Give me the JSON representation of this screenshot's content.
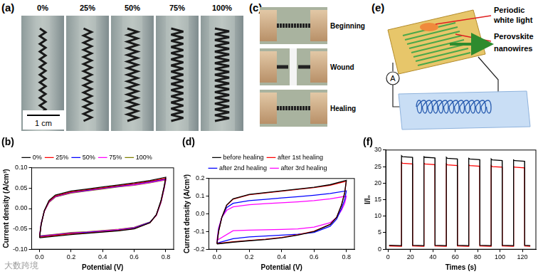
{
  "chart_data": [
    {
      "type": "line",
      "title": "(b)",
      "x_label": "Potential (V)",
      "y_label": "Current density (A/cm³)",
      "xlim": [
        -0.05,
        0.85
      ],
      "xticks": [
        {
          "value": 0,
          "label": "0.0"
        },
        {
          "value": 0.2,
          "label": "0.2"
        },
        {
          "value": 0.4,
          "label": "0.4"
        },
        {
          "value": 0.6,
          "label": "0.6"
        },
        {
          "value": 0.8,
          "label": "0.8"
        }
      ],
      "ylim": [
        -0.1,
        0.1
      ],
      "yticks": [
        {
          "value": -0.1,
          "label": "-0.10"
        },
        {
          "value": -0.05,
          "label": "-0.05"
        },
        {
          "value": 0,
          "label": "0.00"
        },
        {
          "value": 0.05,
          "label": "0.05"
        },
        {
          "value": 0.1,
          "label": "0.10"
        }
      ],
      "grid": false,
      "legend": "top",
      "marker": "none",
      "x": [
        0,
        0.01,
        0.03,
        0.06,
        0.1,
        0.2,
        0.3,
        0.4,
        0.5,
        0.6,
        0.7,
        0.8,
        0.79,
        0.77,
        0.74,
        0.7,
        0.6,
        0.5,
        0.4,
        0.3,
        0.2,
        0.1,
        0
      ],
      "series": [
        {
          "name": "0%",
          "color": "#000000",
          "values": [
            -0.072,
            -0.04,
            -0.005,
            0.02,
            0.033,
            0.043,
            0.048,
            0.053,
            0.058,
            0.063,
            0.069,
            0.077,
            0.055,
            0.02,
            -0.015,
            -0.035,
            -0.05,
            -0.055,
            -0.058,
            -0.061,
            -0.064,
            -0.068,
            -0.072
          ]
        },
        {
          "name": "25%",
          "color": "#ff0000",
          "values": [
            -0.07,
            -0.039,
            -0.006,
            0.018,
            0.031,
            0.041,
            0.046,
            0.051,
            0.056,
            0.061,
            0.067,
            0.074,
            0.053,
            0.018,
            -0.016,
            -0.035,
            -0.049,
            -0.054,
            -0.057,
            -0.06,
            -0.062,
            -0.066,
            -0.07
          ]
        },
        {
          "name": "50%",
          "color": "#0000ff",
          "values": [
            -0.069,
            -0.038,
            -0.006,
            0.017,
            0.03,
            0.04,
            0.045,
            0.05,
            0.055,
            0.06,
            0.066,
            0.073,
            0.052,
            0.017,
            -0.016,
            -0.034,
            -0.048,
            -0.053,
            -0.056,
            -0.059,
            -0.061,
            -0.065,
            -0.069
          ]
        },
        {
          "name": "75%",
          "color": "#ff00ff",
          "values": [
            -0.068,
            -0.037,
            -0.007,
            0.016,
            0.029,
            0.039,
            0.044,
            0.049,
            0.054,
            0.058,
            0.064,
            0.071,
            0.05,
            0.016,
            -0.017,
            -0.034,
            -0.047,
            -0.052,
            -0.055,
            -0.058,
            -0.06,
            -0.064,
            -0.068
          ]
        },
        {
          "name": "100%",
          "color": "#808000",
          "values": [
            -0.067,
            -0.036,
            -0.007,
            0.015,
            0.028,
            0.038,
            0.043,
            0.048,
            0.053,
            0.057,
            0.063,
            0.07,
            0.049,
            0.015,
            -0.017,
            -0.033,
            -0.046,
            -0.051,
            -0.054,
            -0.057,
            -0.059,
            -0.063,
            -0.067
          ]
        }
      ]
    },
    {
      "type": "line",
      "title": "(d)",
      "x_label": "Potential (V)",
      "y_label": "Current density (A/cm³)",
      "xlim": [
        -0.05,
        0.85
      ],
      "xticks": [
        {
          "value": 0,
          "label": "0.0"
        },
        {
          "value": 0.2,
          "label": "0.2"
        },
        {
          "value": 0.4,
          "label": "0.4"
        },
        {
          "value": 0.6,
          "label": "0.6"
        },
        {
          "value": 0.8,
          "label": "0.8"
        }
      ],
      "ylim": [
        -0.2,
        0.2
      ],
      "yticks": [
        {
          "value": -0.2,
          "label": "-0.2"
        },
        {
          "value": -0.1,
          "label": "-0.1"
        },
        {
          "value": 0,
          "label": "0.0"
        },
        {
          "value": 0.1,
          "label": "0.1"
        },
        {
          "value": 0.2,
          "label": "0.2"
        }
      ],
      "grid": false,
      "legend": "top",
      "marker": "none",
      "x": [
        0,
        0.01,
        0.03,
        0.06,
        0.1,
        0.2,
        0.3,
        0.4,
        0.5,
        0.6,
        0.7,
        0.8,
        0.79,
        0.77,
        0.74,
        0.7,
        0.6,
        0.5,
        0.4,
        0.3,
        0.2,
        0.1,
        0
      ],
      "series": [
        {
          "name": "before healing",
          "color": "#000000",
          "values": [
            -0.17,
            -0.1,
            -0.02,
            0.05,
            0.085,
            0.11,
            0.12,
            0.13,
            0.14,
            0.15,
            0.165,
            0.19,
            0.12,
            0.05,
            -0.02,
            -0.06,
            -0.1,
            -0.12,
            -0.135,
            -0.145,
            -0.152,
            -0.16,
            -0.17
          ]
        },
        {
          "name": "after 1st healing",
          "color": "#ff0000",
          "values": [
            -0.168,
            -0.1,
            -0.02,
            0.048,
            0.083,
            0.108,
            0.118,
            0.128,
            0.138,
            0.148,
            0.162,
            0.185,
            0.118,
            0.048,
            -0.02,
            -0.06,
            -0.098,
            -0.118,
            -0.133,
            -0.143,
            -0.15,
            -0.158,
            -0.168
          ]
        },
        {
          "name": "after 2nd healing",
          "color": "#0000ff",
          "values": [
            -0.165,
            -0.09,
            -0.02,
            0.035,
            0.06,
            0.075,
            0.082,
            0.09,
            0.097,
            0.105,
            0.115,
            0.13,
            0.08,
            0.03,
            -0.03,
            -0.07,
            -0.105,
            -0.115,
            -0.12,
            -0.125,
            -0.13,
            -0.14,
            -0.165
          ]
        },
        {
          "name": "after 3rd healing",
          "color": "#ff00ff",
          "values": [
            -0.15,
            -0.08,
            -0.02,
            0.02,
            0.04,
            0.052,
            0.058,
            0.063,
            0.068,
            0.075,
            0.085,
            0.1,
            0.06,
            0.02,
            -0.02,
            -0.05,
            -0.075,
            -0.085,
            -0.088,
            -0.09,
            -0.092,
            -0.095,
            -0.15
          ]
        }
      ]
    },
    {
      "type": "line",
      "title": "(f)",
      "x_label": "Times (s)",
      "y_label": "I/I₀",
      "xlim": [
        -2,
        132
      ],
      "xticks": [
        0,
        20,
        40,
        60,
        80,
        100,
        120
      ],
      "ylim": [
        0,
        30
      ],
      "yticks": [
        0,
        5,
        10,
        15,
        20,
        25,
        30
      ],
      "grid": false,
      "marker": "none",
      "x": [
        1,
        12,
        12.1,
        13,
        21.9,
        22,
        32,
        32.1,
        33,
        41.9,
        42,
        52,
        52.1,
        53,
        61.9,
        62,
        72,
        72.1,
        73,
        81.9,
        82,
        92,
        92.1,
        93,
        101.9,
        102,
        112,
        112.1,
        113,
        121.9,
        122,
        127
      ],
      "series": [
        {
          "color": "#000000",
          "values": [
            1.2,
            1.1,
            28.3,
            28.0,
            27.8,
            1.2,
            1.1,
            28.0,
            27.8,
            27.6,
            1.2,
            1.1,
            27.8,
            27.5,
            27.3,
            1.2,
            1.1,
            27.5,
            27.3,
            27.1,
            1.2,
            1.1,
            27.3,
            27.0,
            26.8,
            1.2,
            1.1,
            27.0,
            26.8,
            26.6,
            1.2,
            1.1
          ]
        },
        {
          "color": "#ff0000",
          "values": [
            1.0,
            0.9,
            26.3,
            26.0,
            25.8,
            1.0,
            0.9,
            26.0,
            25.8,
            25.6,
            1.0,
            0.9,
            25.8,
            25.5,
            25.3,
            1.0,
            0.9,
            25.5,
            25.3,
            25.1,
            1.0,
            0.9,
            25.3,
            25.0,
            24.8,
            1.0,
            0.9,
            25.0,
            24.8,
            24.6,
            1.0,
            0.9
          ]
        }
      ]
    }
  ],
  "panels": {
    "a": {
      "label": "(a)",
      "strains": [
        "0%",
        "25%",
        "50%",
        "75%",
        "100%"
      ],
      "scale_bar": "1 cm"
    },
    "c": {
      "label": "(c)",
      "states": [
        "Beginning",
        "Wound",
        "Healing"
      ]
    },
    "e": {
      "label": "(e)",
      "light": [
        "Periodic",
        "white light"
      ],
      "wires": [
        "Perovskite",
        "nanowires"
      ],
      "meter": "A"
    }
  },
  "watermark": "大数跨境"
}
